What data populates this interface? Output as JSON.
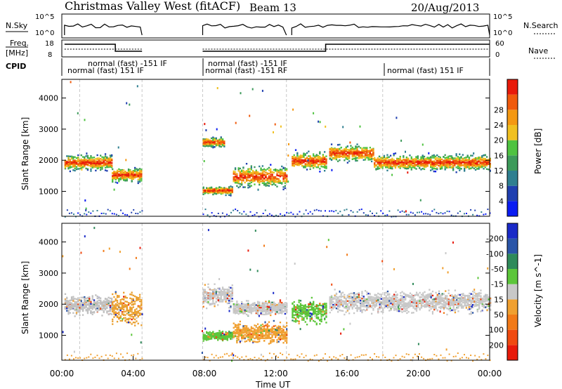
{
  "header": {
    "station": "Christmas Valley West (fitACF)",
    "beam": "Beam 13",
    "date": "20/Aug/2013"
  },
  "params": {
    "nsky_label": "N.Sky",
    "nsky_ticks": [
      "10^5",
      "10^0"
    ],
    "nsearch_label": "N.Search",
    "nsearch_ticks": [
      "10^5",
      "10^0"
    ],
    "freq_label": "Freq.",
    "freq_unit": "[MHz]",
    "freq_ticks": [
      "18",
      "8"
    ],
    "nave_label": "Nave",
    "nave_ticks": [
      "60",
      "0"
    ],
    "cpid_label": "CPID",
    "cpid_segments": [
      {
        "text": "normal (fast) 151 IF",
        "row": 1
      },
      {
        "text": "normal (fast) -151 IF",
        "row": 0
      },
      {
        "text": "normal (fast) -151 IF",
        "row": 0
      },
      {
        "text": "normal (fast) -151 RF",
        "row": 1
      },
      {
        "text": "normal (fast) 151 IF",
        "row": 1
      }
    ]
  },
  "chart_data": [
    {
      "type": "heatmap",
      "name": "power",
      "ylabel": "Slant Range [km]",
      "yticks": [
        "1000",
        "2000",
        "3000",
        "4000"
      ],
      "ylim": [
        200,
        4600
      ],
      "xlim": [
        0,
        24
      ],
      "colorbar_label": "Power [dB]",
      "colorbar_ticks": [
        "4",
        "8",
        "12",
        "16",
        "20",
        "24",
        "28"
      ],
      "colorbar_colors": [
        "#0a1cf2",
        "#1f3fb0",
        "#2f7f90",
        "#3d9a5a",
        "#4fc341",
        "#f0c020",
        "#f49812",
        "#f05a0c",
        "#e81a0a"
      ],
      "bands": [
        {
          "t0": 0.15,
          "t1": 2.8,
          "center": 1950,
          "width": 650
        },
        {
          "t0": 2.8,
          "t1": 4.5,
          "center": 1550,
          "width": 600
        },
        {
          "t0": 7.9,
          "t1": 9.1,
          "center": 2600,
          "width": 400
        },
        {
          "t0": 7.9,
          "t1": 9.6,
          "center": 1050,
          "width": 350
        },
        {
          "t0": 9.6,
          "t1": 12.6,
          "center": 1500,
          "width": 900
        },
        {
          "t0": 12.9,
          "t1": 14.8,
          "center": 2000,
          "width": 750
        },
        {
          "t0": 15.0,
          "t1": 17.5,
          "center": 2250,
          "width": 700
        },
        {
          "t0": 17.5,
          "t1": 24.0,
          "center": 1950,
          "width": 650
        }
      ]
    },
    {
      "type": "heatmap",
      "name": "velocity",
      "ylabel": "Slant Range [km]",
      "yticks": [
        "1000",
        "2000",
        "3000",
        "4000"
      ],
      "ylim": [
        200,
        4600
      ],
      "xlim": [
        0,
        24
      ],
      "xlabel": "Time UT",
      "xticks": [
        "00:00",
        "04:00",
        "08:00",
        "12:00",
        "16:00",
        "20:00",
        "00:00"
      ],
      "xtick_values": [
        0,
        4,
        8,
        12,
        16,
        20,
        24
      ],
      "colorbar_label": "Velocity [m s^-1]",
      "colorbar_ticks": [
        "200",
        "100",
        "50",
        "15",
        "-15",
        "-50",
        "-100",
        "-200"
      ],
      "colorbar_colors": [
        "#1a2ac8",
        "#2a55a8",
        "#2f8a5a",
        "#5cc63a",
        "#c8c8c8",
        "#f0a030",
        "#f27a18",
        "#f04a10",
        "#e81a0a"
      ],
      "bands": [
        {
          "t0": 0.15,
          "t1": 2.8,
          "center": 2000,
          "width": 800,
          "color": "#c0c0c0"
        },
        {
          "t0": 2.8,
          "t1": 4.5,
          "center": 1900,
          "width": 1400,
          "color": "#eaa030"
        },
        {
          "t0": 7.9,
          "t1": 9.6,
          "center": 1000,
          "width": 400,
          "color": "#5cc63a"
        },
        {
          "t0": 7.9,
          "t1": 9.6,
          "center": 2300,
          "width": 900,
          "color": "#c8c8c8"
        },
        {
          "t0": 9.6,
          "t1": 12.6,
          "center": 1100,
          "width": 900,
          "color": "#f0a030"
        },
        {
          "t0": 9.6,
          "t1": 12.6,
          "center": 1900,
          "width": 600,
          "color": "#c8c8c8"
        },
        {
          "t0": 12.9,
          "t1": 14.8,
          "center": 1800,
          "width": 1000,
          "color": "#5cc63a"
        },
        {
          "t0": 15.0,
          "t1": 24.0,
          "center": 2100,
          "width": 900,
          "color": "#c8c8c8"
        }
      ]
    }
  ]
}
